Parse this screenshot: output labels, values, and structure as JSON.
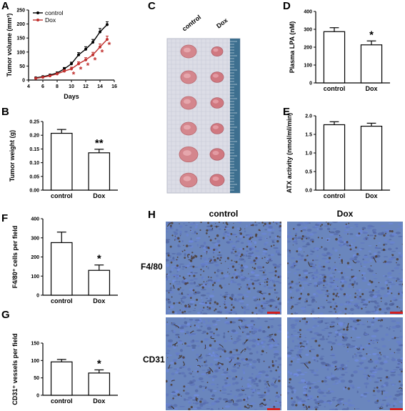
{
  "panels": {
    "A": {
      "letter": "A"
    },
    "B": {
      "letter": "B"
    },
    "C": {
      "letter": "C"
    },
    "D": {
      "letter": "D"
    },
    "E": {
      "letter": "E"
    },
    "F": {
      "letter": "F"
    },
    "G": {
      "letter": "G"
    },
    "H": {
      "letter": "H"
    }
  },
  "colors": {
    "control": "#000000",
    "dox": "#c0302e",
    "tumor": "#d4868d",
    "tray": "#dcdde6",
    "ruler": "#3d6f8f",
    "stain_bg": "#5f7eb8",
    "stain_dark": "#4a3426",
    "scalebar": "#d21f1f"
  },
  "photo": {
    "labels": [
      "control",
      "Dox"
    ],
    "tumor_rows": 6
  },
  "histology": {
    "columns": [
      "control",
      "Dox"
    ],
    "rows": [
      "F4/80",
      "CD31"
    ]
  },
  "chart_data": [
    {
      "id": "A",
      "type": "line",
      "xlabel": "Days",
      "ylabel": "Tumor volume (mm³)",
      "xlim": [
        4,
        16
      ],
      "ylim": [
        0,
        250
      ],
      "xticks": [
        "4",
        "6",
        "8",
        "10",
        "12",
        "14",
        "16"
      ],
      "yticks": [
        "0",
        "50",
        "100",
        "150",
        "200",
        "250"
      ],
      "legend": "top-left",
      "significance": "*",
      "series": [
        {
          "name": "control",
          "x": [
            5,
            6,
            7,
            8,
            9,
            10,
            11,
            12,
            13,
            14,
            15
          ],
          "y": [
            8,
            12,
            18,
            25,
            40,
            58,
            90,
            110,
            135,
            172,
            198
          ],
          "err": [
            2,
            3,
            3,
            4,
            5,
            6,
            8,
            9,
            10,
            12,
            10
          ]
        },
        {
          "name": "Dox",
          "x": [
            5,
            6,
            7,
            8,
            9,
            10,
            11,
            12,
            13,
            14,
            15
          ],
          "y": [
            6,
            10,
            15,
            22,
            32,
            40,
            58,
            72,
            90,
            118,
            145
          ],
          "err": [
            2,
            2,
            3,
            4,
            5,
            6,
            7,
            8,
            9,
            11,
            12
          ]
        }
      ],
      "star_x": [
        10,
        11,
        12,
        13,
        14,
        15
      ]
    },
    {
      "id": "B",
      "type": "bar",
      "ylabel": "Tumor weight (g)",
      "categories": [
        "control",
        "Dox"
      ],
      "values": [
        0.207,
        0.136
      ],
      "errors": [
        0.014,
        0.013
      ],
      "ylim": [
        0,
        0.25
      ],
      "yticks": [
        "0.00",
        "0.05",
        "0.10",
        "0.15",
        "0.20",
        "0.25"
      ],
      "significance": "**"
    },
    {
      "id": "D",
      "type": "bar",
      "ylabel": "Plasma LPA (nM)",
      "categories": [
        "control",
        "Dox"
      ],
      "values": [
        287,
        213
      ],
      "errors": [
        22,
        22
      ],
      "ylim": [
        0,
        400
      ],
      "yticks": [
        "0",
        "100",
        "200",
        "300",
        "400"
      ],
      "significance": "*"
    },
    {
      "id": "E",
      "type": "bar",
      "ylabel": "ATX activity (nmol/ml/min)",
      "categories": [
        "control",
        "Dox"
      ],
      "values": [
        1.76,
        1.72
      ],
      "errors": [
        0.08,
        0.08
      ],
      "ylim": [
        0,
        2.0
      ],
      "yticks": [
        "0.0",
        "0.5",
        "1.0",
        "1.5",
        "2.0"
      ],
      "significance": ""
    },
    {
      "id": "F",
      "type": "bar",
      "ylabel": "F4/80⁺ cells per field",
      "categories": [
        "control",
        "Dox"
      ],
      "values": [
        275,
        130
      ],
      "errors": [
        55,
        28
      ],
      "ylim": [
        0,
        400
      ],
      "yticks": [
        "0",
        "100",
        "200",
        "300",
        "400"
      ],
      "significance": "*"
    },
    {
      "id": "G",
      "type": "bar",
      "ylabel": "CD31⁺ vessels per field",
      "categories": [
        "control",
        "Dox"
      ],
      "values": [
        96,
        64
      ],
      "errors": [
        7,
        9
      ],
      "ylim": [
        0,
        150
      ],
      "yticks": [
        "0",
        "50",
        "100",
        "150"
      ],
      "significance": "*"
    }
  ]
}
